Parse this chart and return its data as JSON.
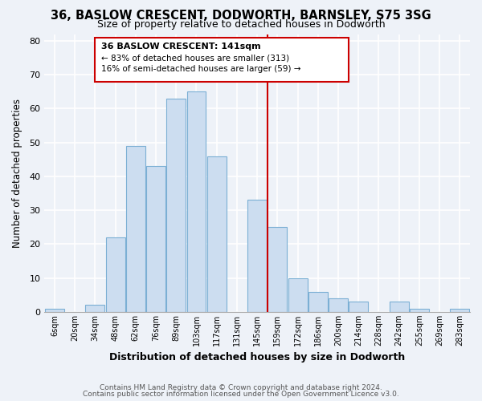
{
  "title": "36, BASLOW CRESCENT, DODWORTH, BARNSLEY, S75 3SG",
  "subtitle": "Size of property relative to detached houses in Dodworth",
  "xlabel": "Distribution of detached houses by size in Dodworth",
  "ylabel": "Number of detached properties",
  "bar_labels": [
    "6sqm",
    "20sqm",
    "34sqm",
    "48sqm",
    "62sqm",
    "76sqm",
    "89sqm",
    "103sqm",
    "117sqm",
    "131sqm",
    "145sqm",
    "159sqm",
    "172sqm",
    "186sqm",
    "200sqm",
    "214sqm",
    "228sqm",
    "242sqm",
    "255sqm",
    "269sqm",
    "283sqm"
  ],
  "bar_values": [
    1,
    0,
    2,
    22,
    49,
    43,
    63,
    65,
    46,
    0,
    33,
    25,
    10,
    6,
    4,
    3,
    0,
    3,
    1,
    0,
    1
  ],
  "bar_color": "#ccddf0",
  "bar_edge_color": "#7bafd4",
  "vline_x_index": 10,
  "vline_color": "#cc0000",
  "annotation_title": "36 BASLOW CRESCENT: 141sqm",
  "annotation_line1": "← 83% of detached houses are smaller (313)",
  "annotation_line2": "16% of semi-detached houses are larger (59) →",
  "annotation_box_color": "#ffffff",
  "annotation_box_edge": "#cc0000",
  "ylim": [
    0,
    82
  ],
  "yticks": [
    0,
    10,
    20,
    30,
    40,
    50,
    60,
    70,
    80
  ],
  "footer1": "Contains HM Land Registry data © Crown copyright and database right 2024.",
  "footer2": "Contains public sector information licensed under the Open Government Licence v3.0.",
  "bg_color": "#eef2f8",
  "grid_color": "#ffffff",
  "title_fontsize": 10.5,
  "subtitle_fontsize": 9
}
